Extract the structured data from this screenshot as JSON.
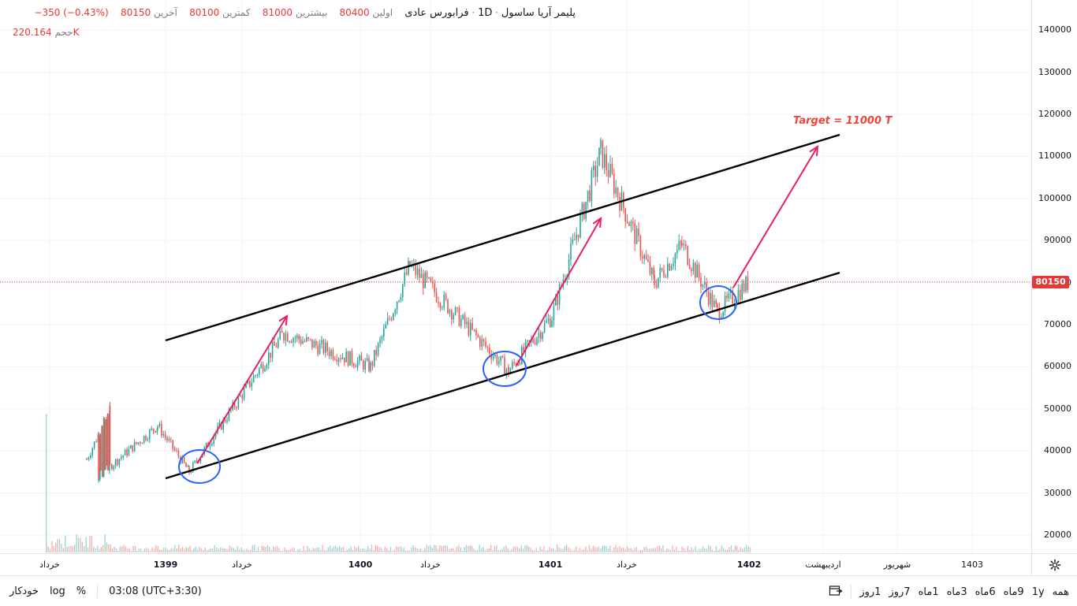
{
  "legend": {
    "symbol": "پلیمر آریا ساسول",
    "interval": "1D",
    "exchange": "فرابورس عادی",
    "open_label": "اولین",
    "open": "80400",
    "high_label": "بیشترین",
    "high": "81000",
    "low_label": "کمترین",
    "low": "80100",
    "close_label": "آخرین",
    "close": "80150",
    "change": "−350 (−0.43%)",
    "volume_label": "حجم",
    "volume": "220.164K"
  },
  "price_axis": {
    "labels": [
      "140000",
      "130000",
      "120000",
      "110000",
      "100000",
      "90000",
      "80000",
      "70000",
      "60000",
      "50000",
      "40000",
      "30000",
      "20000"
    ],
    "last_price": "80150"
  },
  "time_axis": {
    "labels": [
      {
        "text": "خرداد",
        "year": false
      },
      {
        "text": "1399",
        "year": true
      },
      {
        "text": "خرداد",
        "year": false
      },
      {
        "text": "1400",
        "year": true
      },
      {
        "text": "خرداد",
        "year": false
      },
      {
        "text": "1401",
        "year": true
      },
      {
        "text": "خرداد",
        "year": false
      },
      {
        "text": "1402",
        "year": true
      },
      {
        "text": "اردیبهشت",
        "year": false
      },
      {
        "text": "شهریور",
        "year": false
      },
      {
        "text": "1403",
        "year": false
      }
    ]
  },
  "annotation": {
    "target_text": "Target = 11000 T"
  },
  "bottom_bar": {
    "auto": "خودکار",
    "log": "log",
    "percent": "%",
    "time": "03:08 (UTC+3:30)",
    "ranges": [
      "همه",
      "1y",
      "9ماه",
      "6ماه",
      "3ماه",
      "1ماه",
      "7روز",
      "1روز"
    ]
  },
  "colors": {
    "up": "#26a69a",
    "down": "#ef5350",
    "channel": "#000000",
    "arrow": "#e91e63",
    "circle": "#2962ff",
    "last_price": "#e53935"
  },
  "chart_data": {
    "type": "candlestick",
    "title": "",
    "y_axis_range": [
      17000,
      146000
    ],
    "y_ticks": [
      20000,
      30000,
      40000,
      50000,
      60000,
      70000,
      80000,
      90000,
      100000,
      110000,
      120000,
      130000,
      140000
    ],
    "x_ticks": [
      "خرداد",
      "1399",
      "خرداد",
      "1400",
      "خرداد",
      "1401",
      "خرداد",
      "1402",
      "اردیبهشت",
      "شهریور",
      "1403"
    ],
    "approx_price_path": [
      {
        "t": "1398-خرداد",
        "price": 38000
      },
      {
        "t": "1398-late",
        "price": 50000
      },
      {
        "t": "1398-end",
        "price": 34000
      },
      {
        "t": "1399",
        "price": 46000
      },
      {
        "t": "1399-early",
        "price": 35000
      },
      {
        "t": "1399-mid",
        "price": 68000
      },
      {
        "t": "1399-late",
        "price": 60000
      },
      {
        "t": "1400-early",
        "price": 84000
      },
      {
        "t": "1400-mid",
        "price": 59000
      },
      {
        "t": "1401",
        "price": 72000
      },
      {
        "t": "1401-early",
        "price": 111000
      },
      {
        "t": "1401-mid",
        "price": 80000
      },
      {
        "t": "1401-late",
        "price": 89000
      },
      {
        "t": "1402",
        "price": 73000
      },
      {
        "t": "1402-last",
        "price": 80150
      }
    ],
    "last_price": 80150,
    "grid": true,
    "channel_lines": [
      {
        "name": "upper",
        "from_price": 66000,
        "to_price": 115000
      },
      {
        "name": "lower",
        "from_price": 33000,
        "to_price": 82000
      }
    ],
    "target_label": "Target = 11000 T"
  }
}
